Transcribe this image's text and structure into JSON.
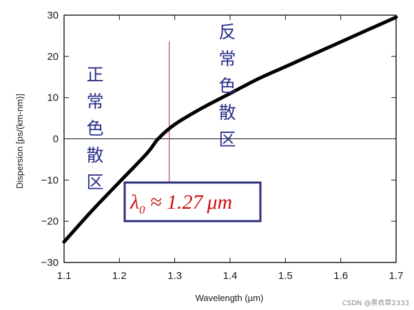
{
  "chart_data": {
    "type": "line",
    "xlabel": "Wavelength (µm)",
    "ylabel": "Dispersion [ps/(km-nm)]",
    "xlim": [
      1.1,
      1.7
    ],
    "ylim": [
      -30,
      30
    ],
    "x_ticks": [
      "1.1",
      "1.2",
      "1.3",
      "1.4",
      "1.5",
      "1.6",
      "1.7"
    ],
    "y_ticks": [
      "30",
      "20",
      "10",
      "0",
      "−10",
      "−20",
      "−30"
    ],
    "series": [
      {
        "x": [
          1.1,
          1.15,
          1.2,
          1.25,
          1.27,
          1.3,
          1.35,
          1.4,
          1.45,
          1.5,
          1.55,
          1.6,
          1.65,
          1.7
        ],
        "y": [
          -25.0,
          -17.5,
          -10.5,
          -3.5,
          0.0,
          3.5,
          7.5,
          11.0,
          14.5,
          17.5,
          20.5,
          23.5,
          26.5,
          29.5
        ]
      }
    ],
    "zero_line": 0,
    "vline_x": 1.29,
    "annotations": {
      "left_region": [
        "正",
        "常",
        "色",
        "散",
        "区"
      ],
      "right_region": [
        "反",
        "常",
        "色",
        "散",
        "区"
      ],
      "lambda_symbol": "λ",
      "lambda_subscript": "0",
      "lambda_rest": " ≈ 1.27",
      "lambda_unit": "μm"
    },
    "colors": {
      "curve": "#000000",
      "vline": "#d0407a",
      "box_border": "#2a2f7a",
      "lambda_text": "#cc1111",
      "region_text": "#2a2f8a"
    }
  },
  "watermark": "CSDN @黑衣草2333"
}
